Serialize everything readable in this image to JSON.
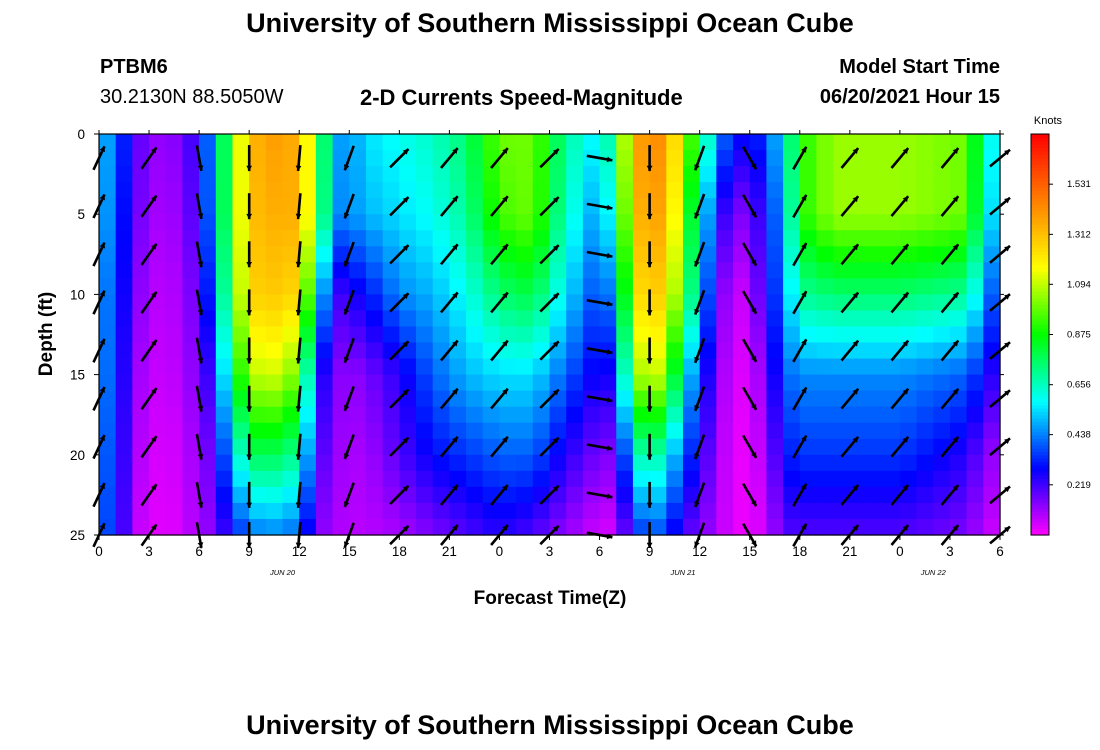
{
  "header": {
    "title": "University of Southern Mississippi Ocean Cube",
    "station_id": "PTBM6",
    "coordinates": "30.2130N  88.5050W",
    "subtitle": "2-D Currents Speed-Magnitude",
    "model_start_label": "Model Start Time",
    "model_start_value": "06/20/2021 Hour 15"
  },
  "footer": {
    "title": "University of Southern Mississippi Ocean Cube"
  },
  "colors": {
    "colormap": [
      "#ff00ff",
      "#0000ff",
      "#00ffff",
      "#00ff00",
      "#ffff00",
      "#ff8000",
      "#ff0000"
    ],
    "arrow": "#000000"
  },
  "chart_data": {
    "type": "heatmap",
    "title": "2-D Currents Speed-Magnitude",
    "xlabel": "Forecast Time(Z)",
    "ylabel": "Depth (ft)",
    "x_unit": "hours since 00Z Jun 20 2021",
    "xlim": [
      0,
      54
    ],
    "ylim": [
      25,
      0
    ],
    "x_ticks": [
      0,
      3,
      6,
      9,
      12,
      15,
      18,
      21,
      24,
      27,
      30,
      33,
      36,
      39,
      42,
      45,
      48,
      51,
      54
    ],
    "x_tick_labels": [
      "0",
      "3",
      "6",
      "9",
      "12",
      "15",
      "18",
      "21",
      "0",
      "3",
      "6",
      "9",
      "12",
      "15",
      "18",
      "21",
      "0",
      "3",
      "6"
    ],
    "y_ticks": [
      0,
      5,
      10,
      15,
      20,
      25
    ],
    "y_tick_labels": [
      "0",
      "5",
      "10",
      "15",
      "20",
      "25"
    ],
    "date_labels": [
      {
        "x": 11,
        "text": "JUN 20"
      },
      {
        "x": 35,
        "text": "JUN 21"
      },
      {
        "x": 50,
        "text": "JUN 22"
      }
    ],
    "colorbar": {
      "unit": "Knots",
      "range": [
        0,
        1.75
      ],
      "ticks": [
        0.219,
        0.438,
        0.656,
        0.875,
        1.094,
        1.312,
        1.531
      ],
      "tick_labels": [
        "0.219",
        "0.438",
        "0.656",
        "0.875",
        "1.094",
        "1.312",
        "1.531"
      ]
    },
    "speed_profiles": [
      {
        "t": 0,
        "s": [
          0.5,
          0.5,
          0.45,
          0.45,
          0.42,
          0.4
        ]
      },
      {
        "t": 1,
        "s": [
          0.45,
          0.42,
          0.4,
          0.38,
          0.36,
          0.34
        ]
      },
      {
        "t": 2,
        "s": [
          0.2,
          0.18,
          0.15,
          0.12,
          0.1,
          0.08
        ]
      },
      {
        "t": 4,
        "s": [
          0.1,
          0.08,
          0.06,
          0.05,
          0.03,
          0.02
        ]
      },
      {
        "t": 6,
        "s": [
          0.25,
          0.22,
          0.18,
          0.15,
          0.12,
          0.1
        ]
      },
      {
        "t": 7,
        "s": [
          0.55,
          0.55,
          0.45,
          0.3,
          0.2,
          0.15
        ]
      },
      {
        "t": 8,
        "s": [
          1.0,
          1.0,
          0.95,
          0.8,
          0.55,
          0.3
        ]
      },
      {
        "t": 9,
        "s": [
          1.3,
          1.3,
          1.25,
          1.05,
          0.75,
          0.4
        ]
      },
      {
        "t": 10,
        "s": [
          1.4,
          1.35,
          1.3,
          1.15,
          0.8,
          0.45
        ]
      },
      {
        "t": 12,
        "s": [
          1.35,
          1.35,
          1.25,
          1.0,
          0.7,
          0.4
        ]
      },
      {
        "t": 13,
        "s": [
          1.0,
          1.0,
          0.7,
          0.35,
          0.25,
          0.15
        ]
      },
      {
        "t": 14,
        "s": [
          0.5,
          0.45,
          0.2,
          0.15,
          0.12,
          0.1
        ]
      },
      {
        "t": 15,
        "s": [
          0.45,
          0.45,
          0.25,
          0.12,
          0.1,
          0.08
        ]
      },
      {
        "t": 16,
        "s": [
          0.55,
          0.5,
          0.3,
          0.15,
          0.1,
          0.08
        ]
      },
      {
        "t": 18,
        "s": [
          0.6,
          0.55,
          0.45,
          0.25,
          0.2,
          0.1
        ]
      },
      {
        "t": 20,
        "s": [
          0.65,
          0.6,
          0.5,
          0.4,
          0.3,
          0.15
        ]
      },
      {
        "t": 22,
        "s": [
          0.75,
          0.7,
          0.6,
          0.5,
          0.35,
          0.2
        ]
      },
      {
        "t": 24,
        "s": [
          1.0,
          0.95,
          0.75,
          0.55,
          0.4,
          0.25
        ]
      },
      {
        "t": 26,
        "s": [
          1.0,
          1.0,
          0.8,
          0.55,
          0.4,
          0.2
        ]
      },
      {
        "t": 28,
        "s": [
          0.7,
          0.65,
          0.55,
          0.4,
          0.25,
          0.12
        ]
      },
      {
        "t": 30,
        "s": [
          0.55,
          0.45,
          0.35,
          0.25,
          0.15,
          0.05
        ]
      },
      {
        "t": 31,
        "s": [
          0.8,
          0.7,
          0.5,
          0.3,
          0.15,
          0.05
        ]
      },
      {
        "t": 32,
        "s": [
          1.35,
          1.3,
          1.2,
          1.0,
          0.6,
          0.3
        ]
      },
      {
        "t": 33,
        "s": [
          1.45,
          1.4,
          1.3,
          1.15,
          0.75,
          0.4
        ]
      },
      {
        "t": 34,
        "s": [
          1.4,
          1.35,
          1.25,
          1.05,
          0.6,
          0.35
        ]
      },
      {
        "t": 35,
        "s": [
          1.1,
          1.0,
          0.9,
          0.6,
          0.4,
          0.2
        ]
      },
      {
        "t": 37,
        "s": [
          0.5,
          0.3,
          0.2,
          0.15,
          0.12,
          0.1
        ]
      },
      {
        "t": 38,
        "s": [
          0.3,
          0.15,
          0.05,
          0.03,
          0.02,
          0.02
        ]
      },
      {
        "t": 39,
        "s": [
          0.3,
          0.15,
          0.08,
          0.05,
          0.03,
          0.03
        ]
      },
      {
        "t": 40,
        "s": [
          0.35,
          0.3,
          0.25,
          0.15,
          0.1,
          0.05
        ]
      },
      {
        "t": 41,
        "s": [
          0.6,
          0.5,
          0.45,
          0.4,
          0.3,
          0.2
        ]
      },
      {
        "t": 42,
        "s": [
          0.9,
          0.9,
          0.7,
          0.45,
          0.35,
          0.2
        ]
      },
      {
        "t": 44,
        "s": [
          1.05,
          1.05,
          0.75,
          0.45,
          0.35,
          0.2
        ]
      },
      {
        "t": 48,
        "s": [
          1.05,
          1.05,
          0.75,
          0.45,
          0.35,
          0.2
        ]
      },
      {
        "t": 52,
        "s": [
          1.0,
          1.0,
          0.7,
          0.4,
          0.25,
          0.15
        ]
      },
      {
        "t": 53,
        "s": [
          0.7,
          0.65,
          0.5,
          0.3,
          0.15,
          0.08
        ]
      },
      {
        "t": 54,
        "s": [
          0.5,
          0.45,
          0.3,
          0.2,
          0.1,
          0.05
        ]
      }
    ],
    "profile_depths": [
      0,
      5,
      10,
      15,
      20,
      25
    ],
    "vectors": {
      "times": [
        0,
        3,
        6,
        9,
        12,
        15,
        18,
        21,
        24,
        27,
        30,
        33,
        36,
        39,
        42,
        45,
        48,
        51,
        54
      ],
      "depths": [
        1.5,
        4.5,
        7.5,
        10.5,
        13.5,
        16.5,
        19.5,
        22.5,
        25
      ],
      "direction_deg_by_time": [
        25,
        35,
        170,
        180,
        185,
        200,
        45,
        40,
        40,
        45,
        100,
        180,
        200,
        150,
        30,
        40,
        40,
        40,
        50
      ],
      "notes": "directions in degrees clockwise from north (direction toward)"
    }
  }
}
